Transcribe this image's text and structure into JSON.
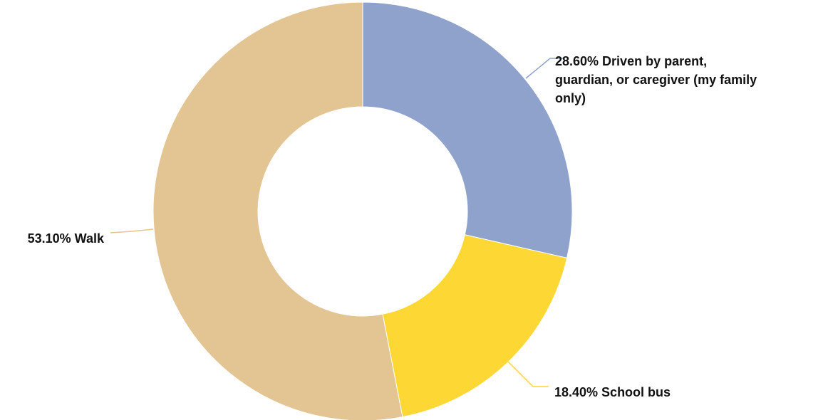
{
  "chart_data": {
    "type": "pie",
    "donut": true,
    "slices": [
      {
        "label": "Driven by parent, guardian, or caregiver (my family only)",
        "value": 28.6,
        "percent_text": "28.60%",
        "label_lines": [
          "28.60% Driven by parent,",
          "guardian, or caregiver (my family",
          "only)"
        ],
        "color": "#8fa2cc"
      },
      {
        "label": "School bus",
        "value": 18.4,
        "percent_text": "18.40%",
        "label_lines": [
          "18.40% School bus"
        ],
        "color": "#fdd835"
      },
      {
        "label": "Walk",
        "value": 53.1,
        "percent_text": "53.10%",
        "label_lines": [
          "53.10% Walk"
        ],
        "color": "#e3c493"
      }
    ]
  }
}
